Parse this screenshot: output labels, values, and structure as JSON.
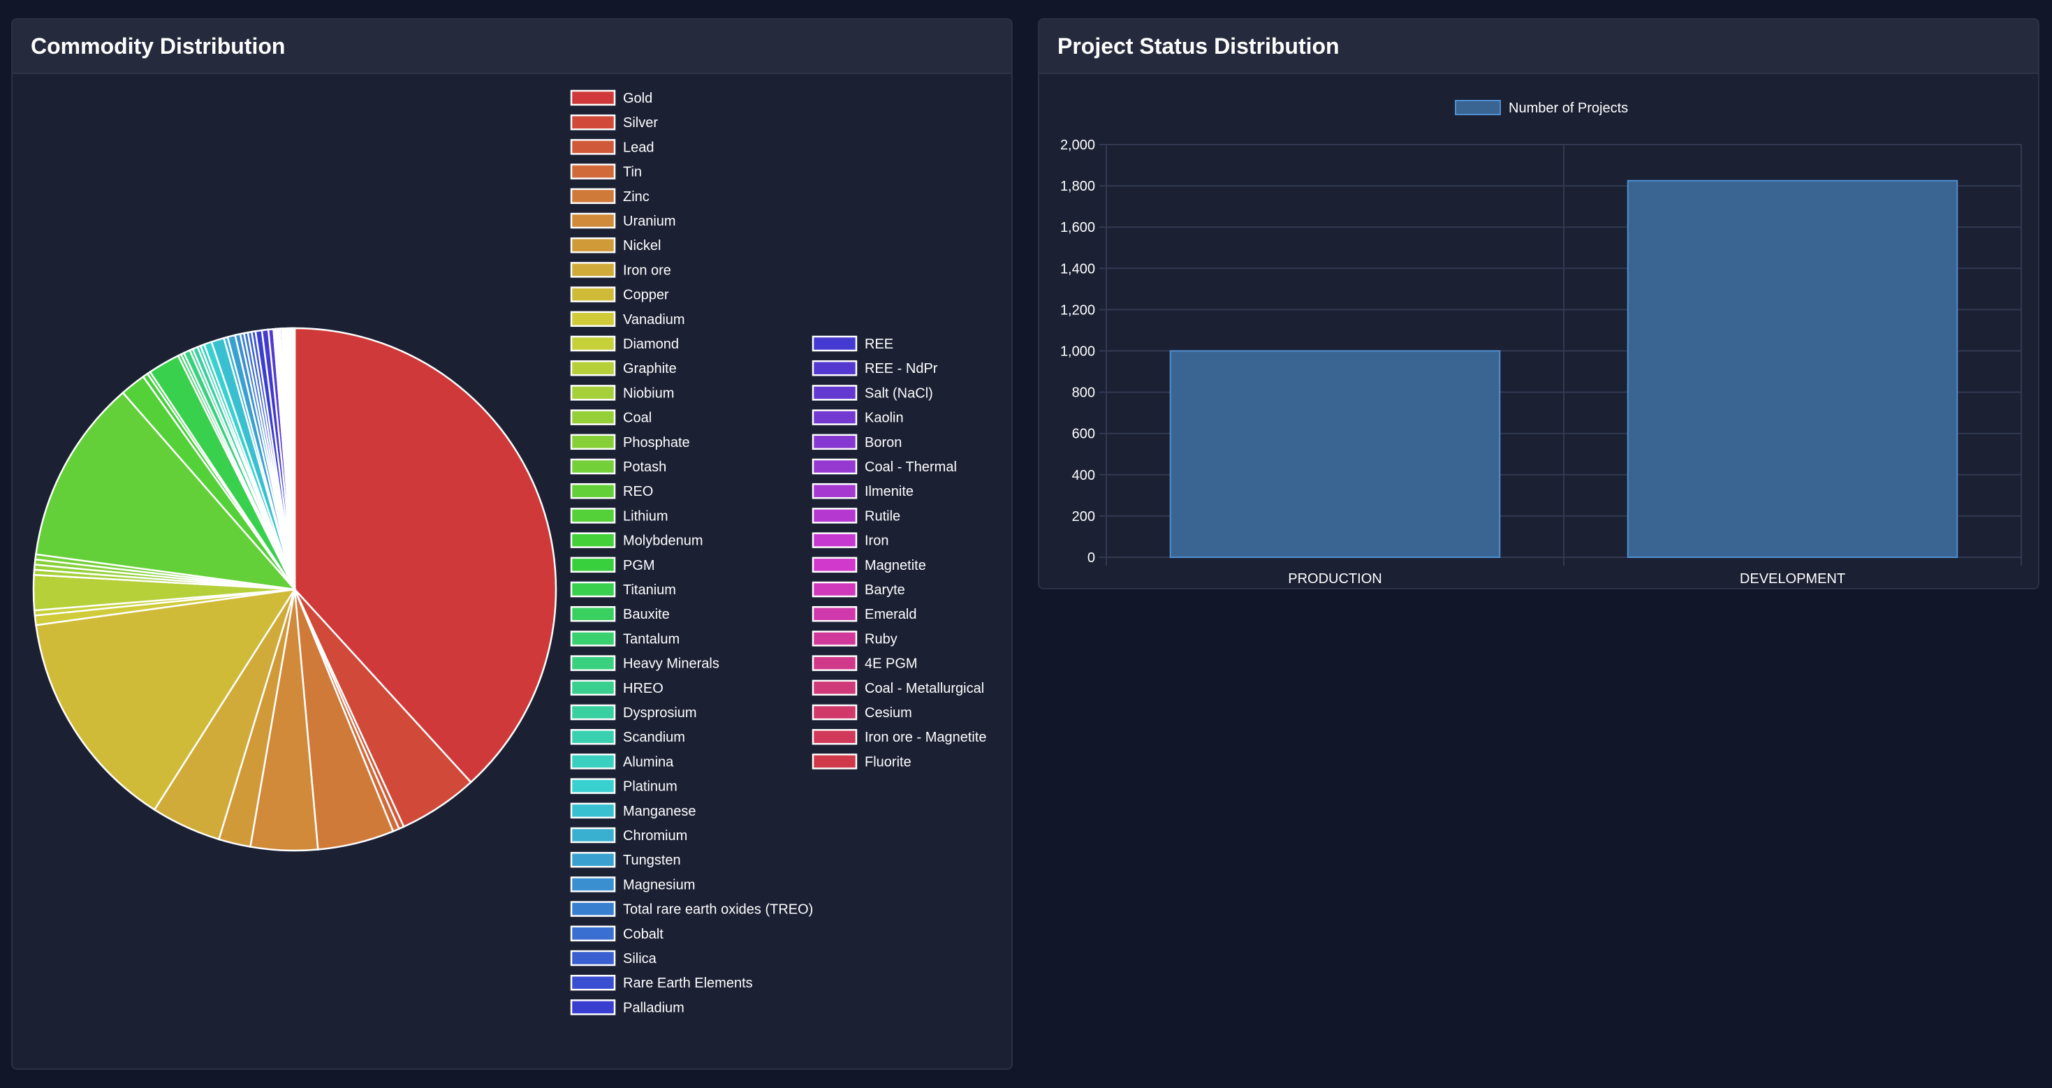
{
  "commodity_panel": {
    "title": "Commodity Distribution"
  },
  "status_panel": {
    "title": "Project Status Distribution"
  },
  "chart_data": [
    {
      "type": "pie",
      "title": "",
      "legend_position": "right",
      "categories": [
        "Gold",
        "Silver",
        "Lead",
        "Tin",
        "Zinc",
        "Uranium",
        "Nickel",
        "Iron ore",
        "Copper",
        "Vanadium",
        "Diamond",
        "Graphite",
        "Niobium",
        "Coal",
        "Phosphate",
        "Potash",
        "REO",
        "Lithium",
        "Molybdenum",
        "PGM",
        "Titanium",
        "Bauxite",
        "Tantalum",
        "Heavy Minerals",
        "HREO",
        "Dysprosium",
        "Scandium",
        "Alumina",
        "Platinum",
        "Manganese",
        "Chromium",
        "Tungsten",
        "Magnesium",
        "Total rare earth oxides (TREO)",
        "Cobalt",
        "Silica",
        "Rare Earth Elements",
        "Palladium",
        "REE",
        "REE - NdPr",
        "Salt (NaCl)",
        "Kaolin",
        "Boron",
        "Coal - Thermal",
        "Ilmenite",
        "Rutile",
        "Iron",
        "Magnetite",
        "Baryte",
        "Emerald",
        "Ruby",
        "4E PGM",
        "Coal - Metallurgical",
        "Cesium",
        "Iron ore - Magnetite",
        "Fluorite"
      ],
      "values": [
        970,
        125,
        8,
        10,
        120,
        105,
        50,
        110,
        350,
        15,
        8,
        55,
        8,
        8,
        8,
        8,
        290,
        40,
        8,
        5,
        50,
        5,
        5,
        10,
        5,
        8,
        5,
        6,
        12,
        20,
        6,
        12,
        8,
        6,
        6,
        6,
        6,
        10,
        10,
        8,
        2,
        2,
        2,
        2,
        2,
        3,
        2,
        2,
        2,
        2,
        2,
        2,
        2,
        2,
        2,
        2
      ]
    },
    {
      "type": "bar",
      "title": "",
      "legend_position": "top",
      "categories": [
        "PRODUCTION",
        "DEVELOPMENT"
      ],
      "series": [
        {
          "name": "Number of Projects",
          "values": [
            1000,
            1825
          ]
        }
      ],
      "ylim": [
        0,
        2000
      ],
      "yticks": [
        0,
        200,
        400,
        600,
        800,
        1000,
        1200,
        1400,
        1600,
        1800,
        2000
      ],
      "ytick_labels": [
        "0",
        "200",
        "400",
        "600",
        "800",
        "1,000",
        "1,200",
        "1,400",
        "1,600",
        "1,800",
        "2,000"
      ],
      "grid": true,
      "bar_color": "#3a6592",
      "bar_border": "#4f8fd0"
    }
  ]
}
